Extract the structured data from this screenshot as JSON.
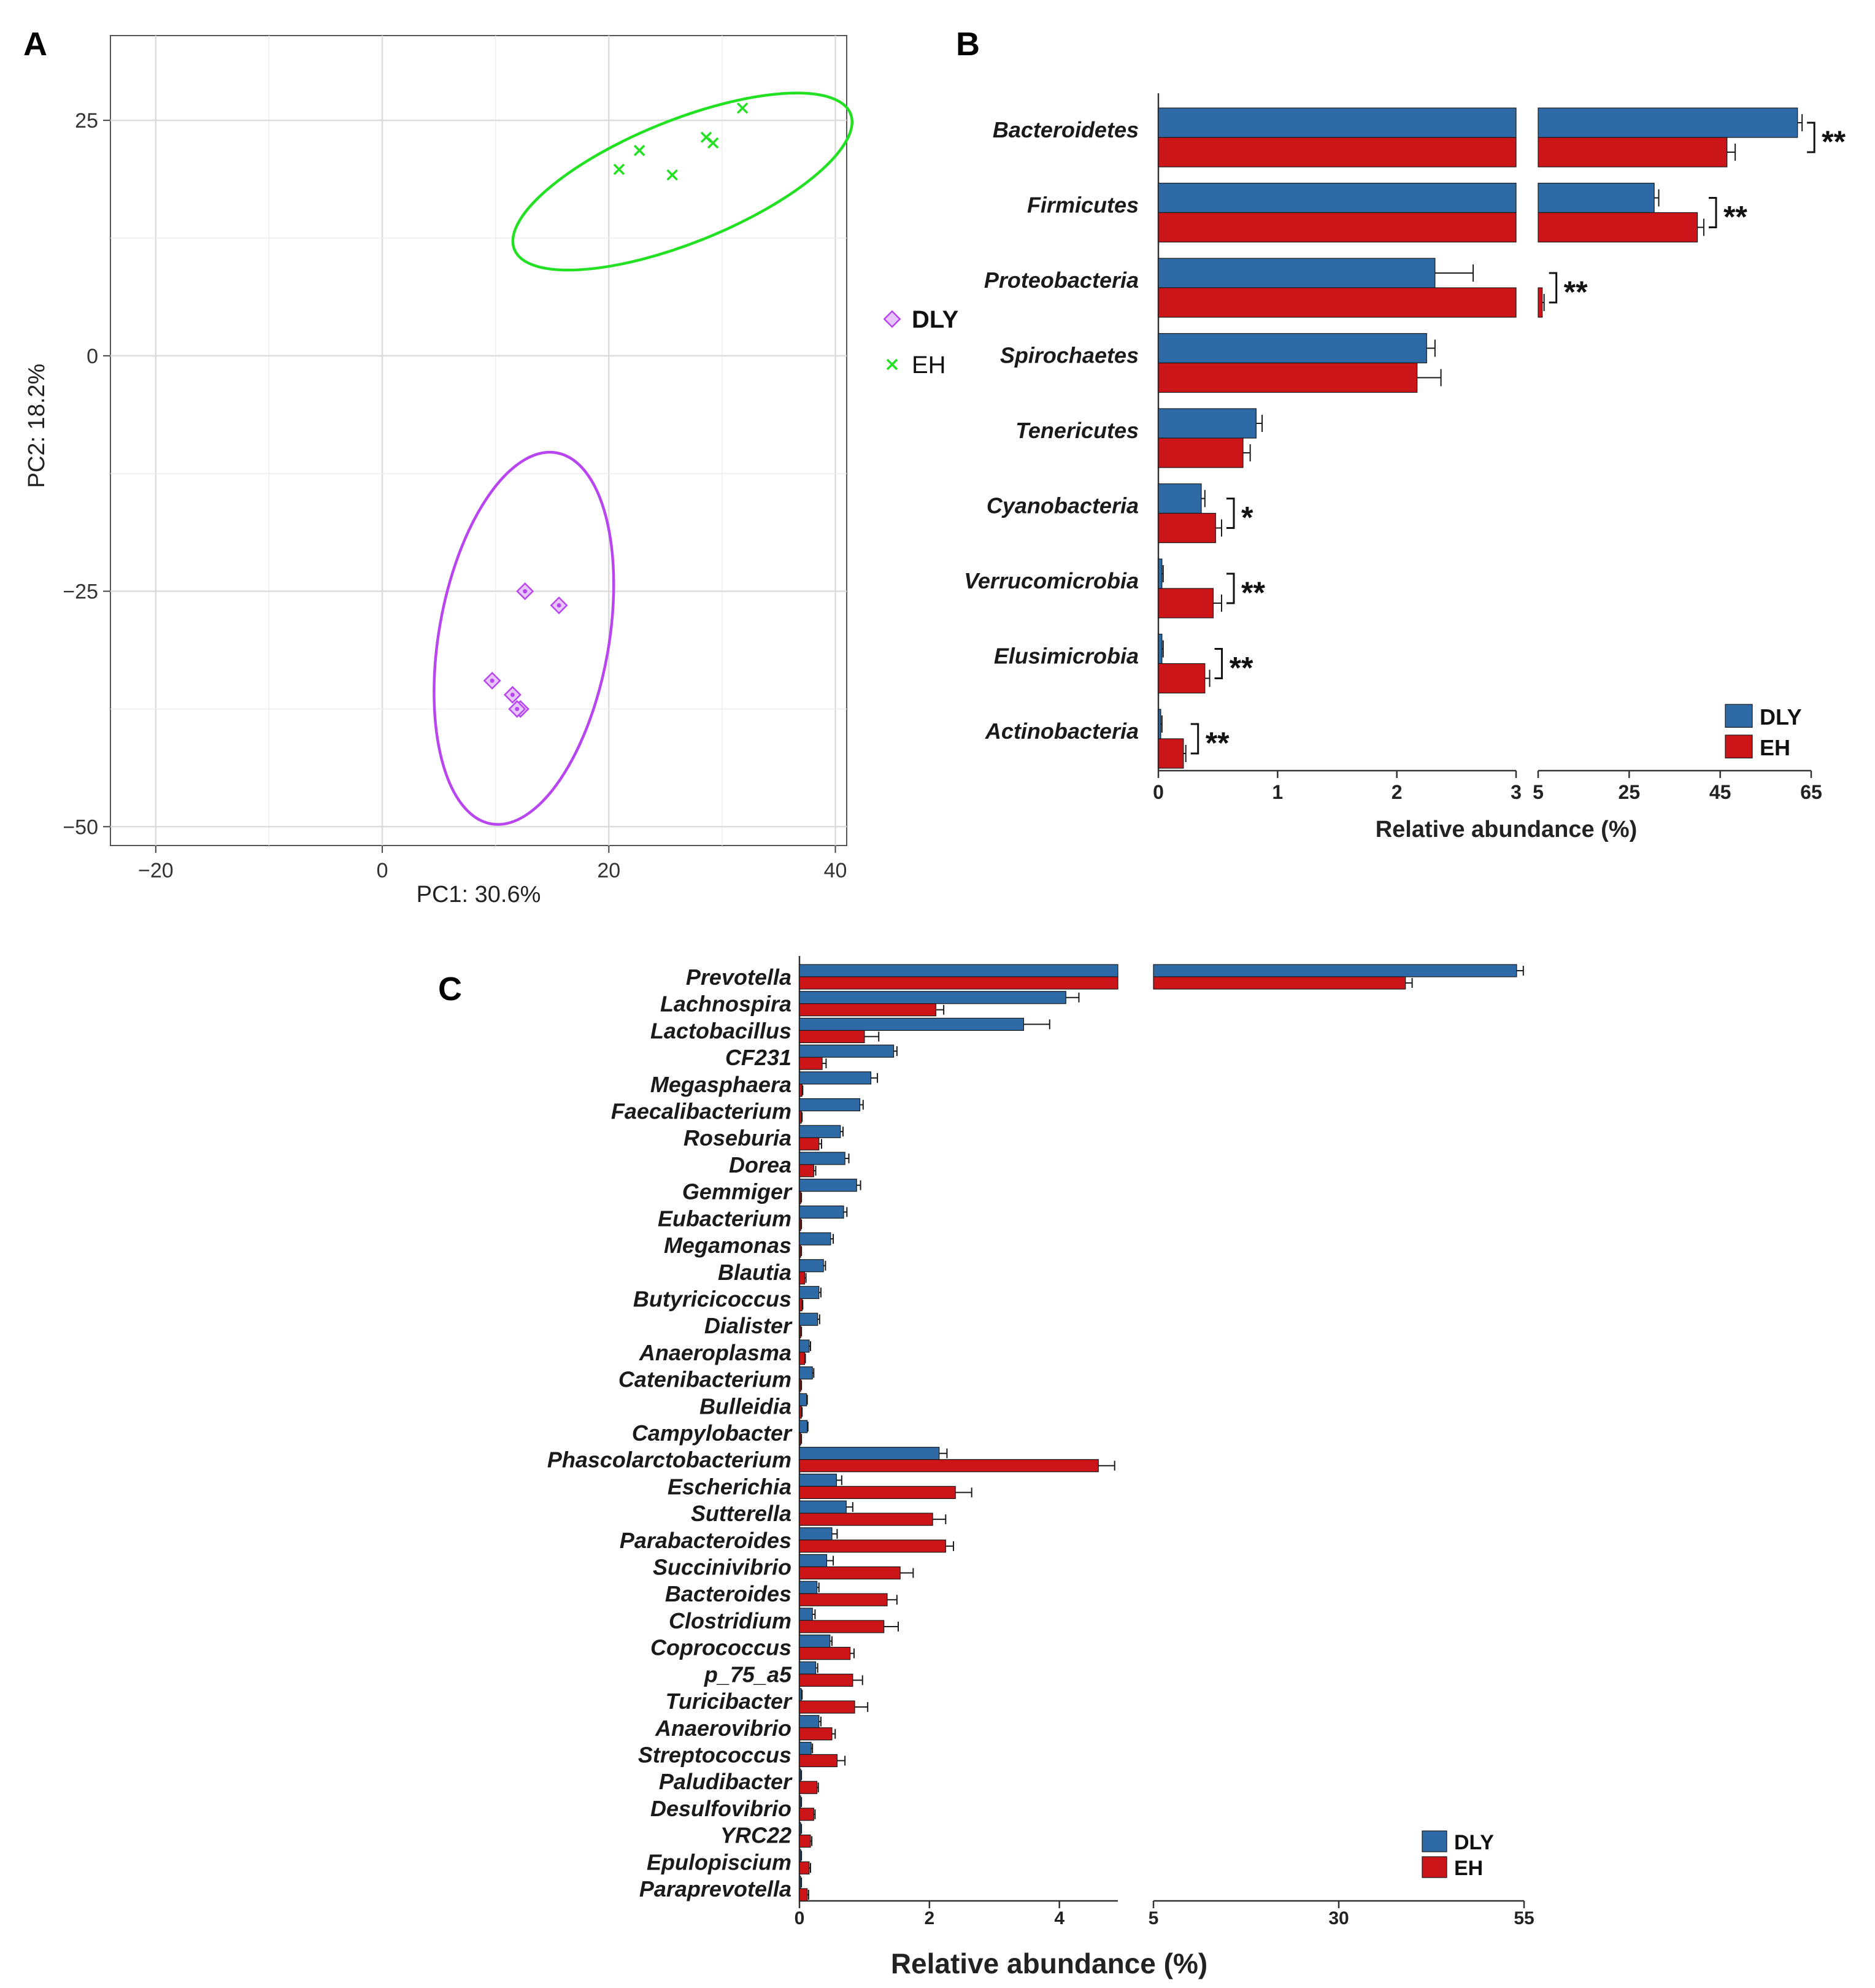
{
  "colors": {
    "dly": "#2e6aa6",
    "eh": "#cc1519",
    "pca_dly": "#b845f0",
    "pca_eh": "#22e022",
    "panel_bg": "#ffffff",
    "grid": "#e4e4e4"
  },
  "chart_data": [
    {
      "panel": "A",
      "type": "scatter",
      "xlabel": "PC1: 30.6%",
      "ylabel": "PC2: 18.2%",
      "xlim": [
        -24,
        41
      ],
      "ylim": [
        -52,
        34
      ],
      "xticks": [
        -20,
        0,
        20,
        40
      ],
      "yticks": [
        25,
        0,
        -25,
        -50
      ],
      "x_tick_labels": [
        "−20",
        "0",
        "20",
        "40"
      ],
      "y_tick_labels": [
        "25",
        "0",
        "−25",
        "−50"
      ],
      "legend": [
        {
          "label": "DLY",
          "marker": "diamond"
        },
        {
          "label": "EH",
          "marker": "x"
        }
      ],
      "series": [
        {
          "name": "DLY",
          "points": [
            [
              12.6,
              -25
            ],
            [
              15.6,
              -26.5
            ],
            [
              9.7,
              -34.5
            ],
            [
              11.5,
              -36
            ],
            [
              12.2,
              -37.5
            ],
            [
              11.9,
              -37.5
            ]
          ],
          "ellipse": {
            "center": [
              12.5,
              -30
            ],
            "rx": 7.5,
            "ry": 20,
            "angle": -10
          }
        },
        {
          "name": "EH",
          "points": [
            [
              20.9,
              19.8
            ],
            [
              22.7,
              21.8
            ],
            [
              25.6,
              19.2
            ],
            [
              28.6,
              23.2
            ],
            [
              29.2,
              22.6
            ],
            [
              31.8,
              26.3
            ]
          ],
          "ellipse": {
            "center": [
              26.5,
              18.5
            ],
            "rx": 16,
            "ry": 6.5,
            "angle": 22
          }
        }
      ]
    },
    {
      "panel": "B",
      "type": "bar",
      "orientation": "horizontal",
      "xlabel": "Relative abundance (%)",
      "ylabel": "",
      "xlim_segment1": [
        0,
        3
      ],
      "xlim_segment2": [
        5,
        65
      ],
      "x_ticks_segment1": [
        0,
        1,
        2,
        3
      ],
      "x_ticks_segment2": [
        5,
        25,
        45,
        65
      ],
      "legend": [
        "DLY",
        "EH"
      ],
      "legend_position": "bottom-right",
      "categories": [
        "Bacteroidetes",
        "Firmicutes",
        "Proteobacteria",
        "Spirochaetes",
        "Tenericutes",
        "Cyanobacteria",
        "Verrucomicrobia",
        "Elusimicrobia",
        "Actinobacteria"
      ],
      "series": [
        {
          "name": "DLY",
          "values": [
            62,
            30.5,
            2.32,
            2.25,
            0.82,
            0.36,
            0.03,
            0.03,
            0.02
          ],
          "errors": [
            1.0,
            1.0,
            0.32,
            0.07,
            0.05,
            0.03,
            0.01,
            0.01,
            0.01
          ]
        },
        {
          "name": "EH",
          "values": [
            46.5,
            40,
            5.9,
            2.17,
            0.71,
            0.48,
            0.46,
            0.39,
            0.21
          ],
          "errors": [
            1.8,
            1.4,
            0.4,
            0.2,
            0.06,
            0.05,
            0.07,
            0.04,
            0.02
          ]
        }
      ],
      "significance": [
        "**",
        "**",
        "**",
        "",
        "",
        "*",
        "**",
        "**",
        "**"
      ]
    },
    {
      "panel": "C",
      "type": "bar",
      "orientation": "horizontal",
      "xlabel": "Relative abundance (%)",
      "ylabel": "",
      "xlim_segment1": [
        0,
        4.9
      ],
      "xlim_segment2": [
        5,
        55
      ],
      "x_ticks_segment1": [
        0,
        2,
        4
      ],
      "x_ticks_segment2": [
        5,
        30,
        55
      ],
      "legend": [
        "DLY",
        "EH"
      ],
      "legend_position": "bottom-right",
      "categories": [
        "Prevotella",
        "Lachnospira",
        "Lactobacillus",
        "CF231",
        "Megasphaera",
        "Faecalibacterium",
        "Roseburia",
        "Dorea",
        "Gemmiger",
        "Eubacterium",
        "Megamonas",
        "Blautia",
        "Butyricicoccus",
        "Dialister",
        "Anaeroplasma",
        "Catenibacterium",
        "Bulleidia",
        "Campylobacter",
        "Phascolarctobacterium",
        "Escherichia",
        "Sutterella",
        "Parabacteroides",
        "Succinivibrio",
        "Bacteroides",
        "Clostridium",
        "Coprococcus",
        "p_75_a5",
        "Turicibacter",
        "Anaerovibrio",
        "Streptococcus",
        "Paludibacter",
        "Desulfovibrio",
        "YRC22",
        "Epulopiscium",
        "Paraprevotella"
      ],
      "series": [
        {
          "name": "DLY",
          "values": [
            54,
            4.1,
            3.45,
            1.45,
            1.1,
            0.93,
            0.63,
            0.7,
            0.88,
            0.68,
            0.48,
            0.37,
            0.3,
            0.28,
            0.15,
            0.2,
            0.11,
            0.12,
            2.15,
            0.57,
            0.72,
            0.5,
            0.42,
            0.27,
            0.2,
            0.47,
            0.25,
            0.03,
            0.3,
            0.18,
            0.02,
            0.02,
            0.02,
            0.02,
            0.02
          ],
          "errors": [
            0.9,
            0.2,
            0.4,
            0.05,
            0.1,
            0.05,
            0.04,
            0.06,
            0.06,
            0.05,
            0.04,
            0.03,
            0.03,
            0.03,
            0.02,
            0.02,
            0.01,
            0.01,
            0.12,
            0.08,
            0.1,
            0.08,
            0.1,
            0.03,
            0.04,
            0.03,
            0.03,
            0.01,
            0.03,
            0.02,
            0.01,
            0.01,
            0.01,
            0.01,
            0.01
          ]
        },
        {
          "name": "EH",
          "values": [
            39,
            2.1,
            1.0,
            0.35,
            0.04,
            0.03,
            0.3,
            0.22,
            0.02,
            0.02,
            0.02,
            0.08,
            0.04,
            0.02,
            0.08,
            0.02,
            0.03,
            0.02,
            4.6,
            2.4,
            2.05,
            2.25,
            1.55,
            1.35,
            1.3,
            0.78,
            0.82,
            0.85,
            0.5,
            0.58,
            0.27,
            0.22,
            0.17,
            0.15,
            0.12
          ],
          "errors": [
            0.9,
            0.12,
            0.22,
            0.06,
            0.01,
            0.01,
            0.04,
            0.03,
            0.01,
            0.01,
            0.01,
            0.02,
            0.01,
            0.01,
            0.01,
            0.01,
            0.01,
            0.01,
            0.25,
            0.25,
            0.2,
            0.12,
            0.2,
            0.15,
            0.22,
            0.06,
            0.15,
            0.2,
            0.05,
            0.12,
            0.02,
            0.02,
            0.02,
            0.02,
            0.02
          ]
        }
      ]
    }
  ],
  "panel_labels": {
    "a": "A",
    "b": "B",
    "c": "C"
  }
}
